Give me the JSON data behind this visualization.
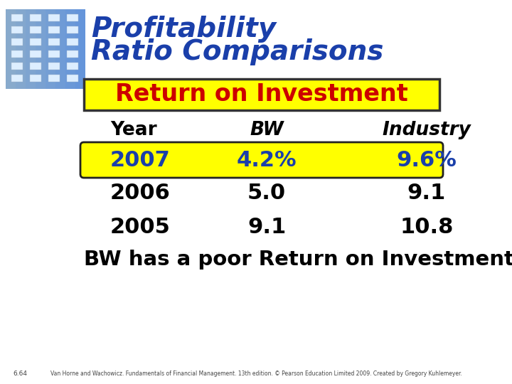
{
  "title_line1": "Profitability",
  "title_line2": "Ratio Comparisons",
  "title_color": "#1a3faa",
  "subtitle": "Return on Investment",
  "subtitle_bg": "#ffff00",
  "subtitle_border": "#333333",
  "subtitle_color": "#cc0000",
  "col_headers": [
    "Year",
    "BW",
    "Industry"
  ],
  "col_header_styles": [
    "bold",
    "bold_italic",
    "bold_italic"
  ],
  "rows": [
    {
      "year": "2007",
      "bw": "4.2%",
      "industry": "9.6%",
      "highlight": true
    },
    {
      "year": "2006",
      "bw": "5.0",
      "industry": "9.1",
      "highlight": false
    },
    {
      "year": "2005",
      "bw": "9.1",
      "industry": "10.8",
      "highlight": false
    }
  ],
  "highlight_bg": "#ffff00",
  "highlight_border": "#222222",
  "highlight_text_color": "#1a3faa",
  "normal_text_color": "#000000",
  "footer_text": "BW has a poor Return on Investment.",
  "footer_color": "#000000",
  "citation": "Van Horne and Wachowicz. Fundamentals of Financial Management. 13th edition. © Pearson Education Limited 2009. Created by Gregory Kuhlemeyer.",
  "slide_num": "6.64",
  "bg_color": "#ffffff",
  "img_placeholder_color": "#aabbcc"
}
